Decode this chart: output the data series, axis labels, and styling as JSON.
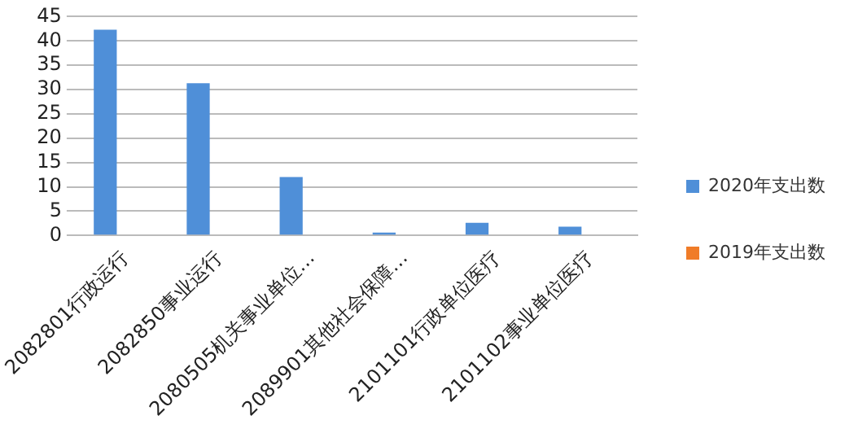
{
  "chart_data": {
    "type": "bar",
    "categories": [
      "2082801行政运行",
      "2082850事业运行",
      "2080505机关事业单位…",
      "2089901其他社会保障…",
      "2101101行政单位医疗",
      "2101102事业单位医疗"
    ],
    "series": [
      {
        "name": "2020年支出数",
        "color": "#4f8fd8",
        "values": [
          42.3,
          31.3,
          12,
          0.6,
          2.6,
          1.8
        ]
      },
      {
        "name": "2019年支出数",
        "color": "#f07c28",
        "values": [
          null,
          null,
          null,
          null,
          null,
          null
        ]
      }
    ],
    "ylim": [
      0,
      45
    ],
    "yticks": [
      0,
      5,
      10,
      15,
      20,
      25,
      30,
      35,
      40,
      45
    ],
    "grid": "y",
    "legend": "right"
  }
}
